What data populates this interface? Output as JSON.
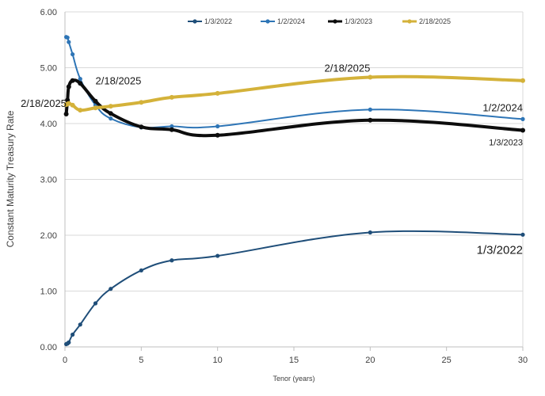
{
  "chart_data": {
    "type": "line",
    "title": "",
    "xlabel": "Tenor (years)",
    "ylabel": "Constant Maturity Treasury Rate",
    "xlim": [
      0,
      30
    ],
    "ylim": [
      0,
      6
    ],
    "xticks": [
      "0",
      "5",
      "10",
      "15",
      "20",
      "25",
      "30"
    ],
    "xtick_values": [
      0,
      5,
      10,
      15,
      20,
      25,
      30
    ],
    "yticks": [
      "0.00",
      "1.00",
      "2.00",
      "3.00",
      "4.00",
      "5.00",
      "6.00"
    ],
    "ytick_values": [
      0,
      1,
      2,
      3,
      4,
      5,
      6
    ],
    "grid": "horizontal",
    "legend_position": "top",
    "x": [
      0.083,
      0.167,
      0.25,
      0.5,
      1,
      2,
      3,
      5,
      7,
      10,
      20,
      30
    ],
    "series": [
      {
        "name": "1/3/2022",
        "color": "#1f4e79",
        "width": 2,
        "values": [
          0.05,
          0.06,
          0.08,
          0.22,
          0.4,
          0.78,
          1.04,
          1.37,
          1.55,
          1.63,
          2.05,
          2.01
        ]
      },
      {
        "name": "1/2/2024",
        "color": "#2e75b6",
        "width": 2,
        "values": [
          5.55,
          5.54,
          5.46,
          5.24,
          4.8,
          4.33,
          4.09,
          3.93,
          3.95,
          3.95,
          4.25,
          4.08
        ]
      },
      {
        "name": "1/3/2023",
        "color": "#0d0d0d",
        "width": 4,
        "values": [
          4.17,
          4.42,
          4.66,
          4.77,
          4.72,
          4.4,
          4.18,
          3.94,
          3.89,
          3.79,
          4.06,
          3.88
        ]
      },
      {
        "name": "2/18/2025",
        "color": "#d4b23a",
        "width": 4,
        "values": [
          4.34,
          4.35,
          4.36,
          4.33,
          4.24,
          4.28,
          4.31,
          4.38,
          4.47,
          4.54,
          4.83,
          4.77
        ]
      }
    ],
    "annotations": [
      {
        "text": "2/18/2025",
        "x": 2.0,
        "y": 4.7,
        "anchor": "start",
        "size": "large"
      },
      {
        "text": "2/18/2025",
        "x": 0.1,
        "y": 4.3,
        "anchor": "end",
        "size": "large"
      },
      {
        "text": "2/18/2025",
        "x": 18.5,
        "y": 4.93,
        "anchor": "middle",
        "size": "large"
      },
      {
        "text": "1/2/2024",
        "x": 30,
        "y": 4.22,
        "anchor": "end",
        "size": "large"
      },
      {
        "text": "1/3/2023",
        "x": 30,
        "y": 3.61,
        "anchor": "end",
        "size": "small"
      },
      {
        "text": "1/3/2022",
        "x": 30,
        "y": 1.67,
        "anchor": "end",
        "size": "xl"
      }
    ]
  }
}
